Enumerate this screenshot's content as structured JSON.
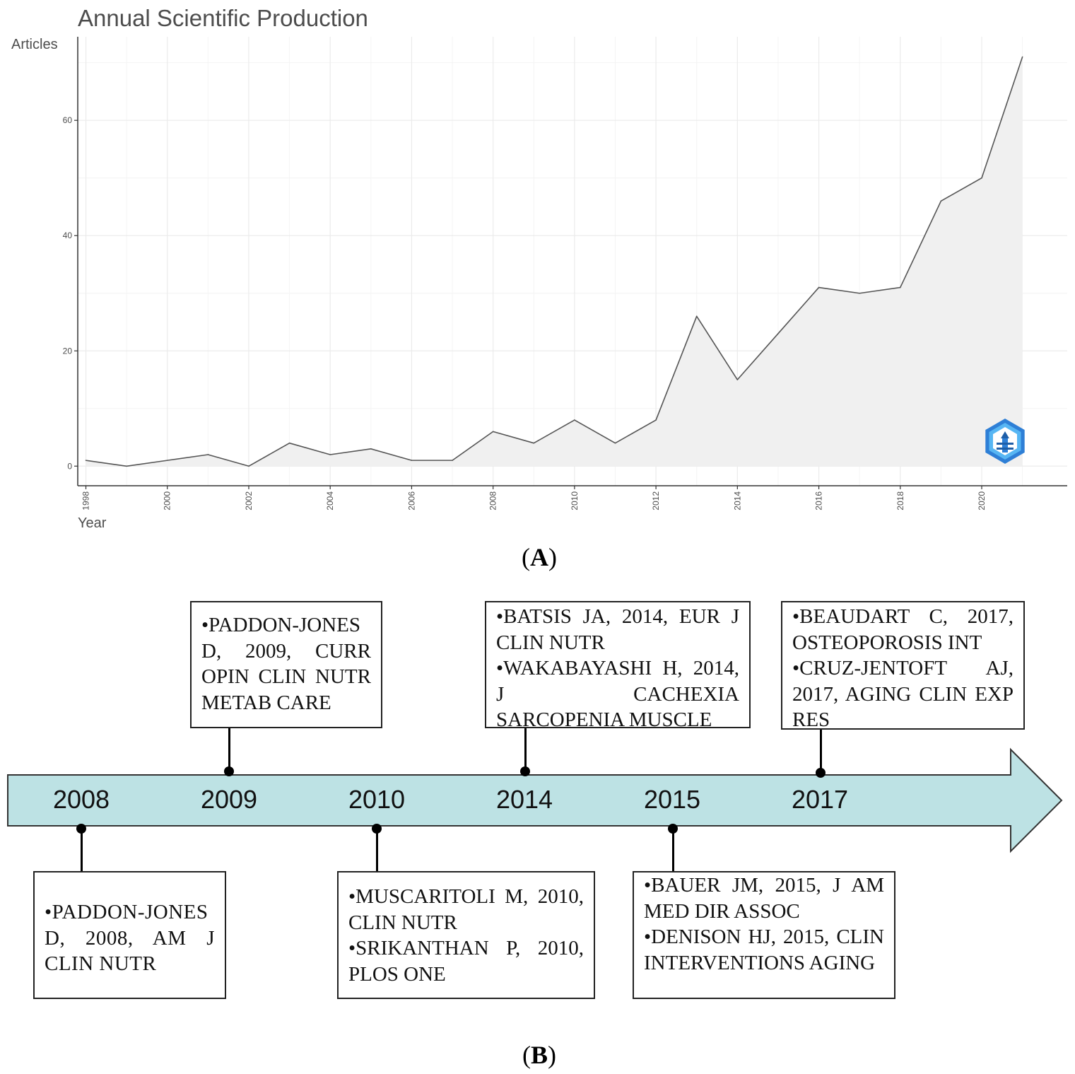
{
  "chart_data": {
    "type": "area",
    "title": "Annual Scientific Production",
    "ylabel": "Articles",
    "xlabel": "Year",
    "x": [
      1998,
      1999,
      2000,
      2001,
      2002,
      2003,
      2004,
      2005,
      2006,
      2007,
      2008,
      2009,
      2010,
      2011,
      2012,
      2013,
      2014,
      2015,
      2016,
      2017,
      2018,
      2019,
      2020,
      2021
    ],
    "y": [
      1,
      0,
      1,
      2,
      0,
      4,
      2,
      3,
      1,
      1,
      6,
      4,
      8,
      4,
      8,
      26,
      15,
      23,
      31,
      30,
      31,
      46,
      50,
      71
    ],
    "xlim": [
      1997.8,
      2022.1
    ],
    "ylim": [
      -3.4,
      74.5
    ],
    "x_ticks": [
      "1998",
      "2000",
      "2002",
      "2004",
      "2006",
      "2008",
      "2010",
      "2012",
      "2014",
      "2016",
      "2018",
      "2020"
    ],
    "y_ticks": [
      "0",
      "20",
      "40",
      "60"
    ],
    "grid": true,
    "line_color": "#555555",
    "fill_color": "#f0f0f0"
  },
  "panel_a_label": "A",
  "panel_b_label": "B",
  "timeline": {
    "fill_color": "#bde2e4",
    "events": [
      {
        "year": "2008",
        "position": "below",
        "entries": [
          "•PADDON-JONES D, 2008, AM J CLIN NUTR"
        ]
      },
      {
        "year": "2009",
        "position": "above",
        "entries": [
          "•PADDON-JONES D, 2009, CURR OPIN CLIN NUTR METAB CARE"
        ]
      },
      {
        "year": "2010",
        "position": "below",
        "entries": [
          "•MUSCARITOLI M, 2010, CLIN NUTR",
          "•SRIKANTHAN P, 2010, PLOS ONE"
        ]
      },
      {
        "year": "2014",
        "position": "above",
        "entries": [
          "•BATSIS JA, 2014, EUR J CLIN NUTR",
          "•WAKABAYASHI H, 2014, J CACHEXIA SARCOPENIA MUSCLE"
        ]
      },
      {
        "year": "2015",
        "position": "below",
        "entries": [
          "•BAUER JM, 2015, J AM MED DIR ASSOC",
          "•DENISON HJ, 2015, CLIN INTERVENTIONS AGING"
        ]
      },
      {
        "year": "2017",
        "position": "above",
        "entries": [
          "•BEAUDART C, 2017, OSTEOPOROSIS INT",
          "•CRUZ-JENTOFT AJ, 2017, AGING CLIN EXP RES"
        ]
      }
    ]
  }
}
